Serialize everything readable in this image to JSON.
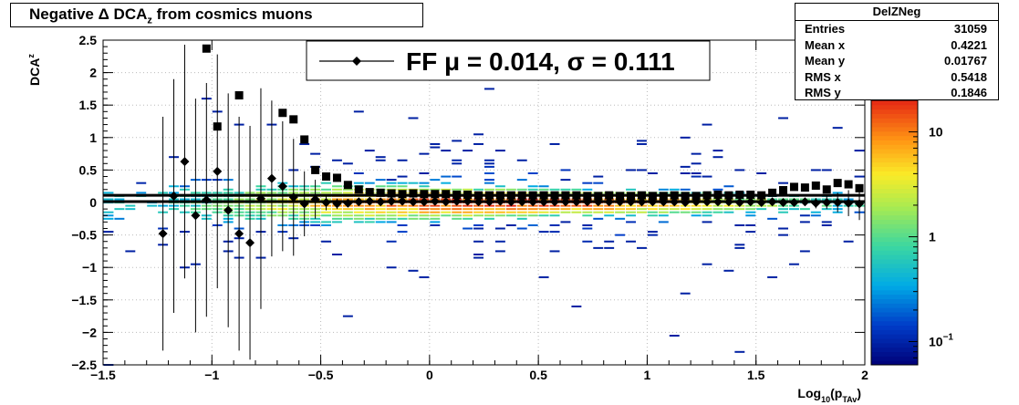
{
  "title": {
    "prefix": "Negative ",
    "delta": "Δ",
    "main": " DCA",
    "sub": "z",
    "suffix": " from cosmics muons"
  },
  "stats_box": {
    "name": "DelZNeg",
    "rows": [
      {
        "label": "Entries",
        "value": "31059"
      },
      {
        "label": "Mean x",
        "value": "0.4221"
      },
      {
        "label": "Mean y",
        "value": "0.01767"
      },
      {
        "label": "RMS x",
        "value": "0.5418"
      },
      {
        "label": "RMS y",
        "value": "0.1846"
      }
    ]
  },
  "legend": {
    "entry": "FF μ =  0.014, σ =   0.111"
  },
  "chart_data": {
    "type": "scatter",
    "xlabel": "Log",
    "xlabel_sub1": "10",
    "xlabel_mid": "(p",
    "xlabel_sub2": "TAv",
    "xlabel_end": ")",
    "ylabel": "DCA",
    "ylabel_sub": "z",
    "xlim": [
      -1.5,
      2
    ],
    "ylim": [
      -2.5,
      2.5
    ],
    "x_ticks": [
      -1.5,
      -1,
      -0.5,
      0,
      0.5,
      1,
      1.5,
      2
    ],
    "x_tick_labels": [
      "−1.5",
      "−1",
      "−0.5",
      "0",
      "0.5",
      "1",
      "1.5",
      "2"
    ],
    "y_ticks": [
      -2.5,
      -2,
      -1.5,
      -1,
      -0.5,
      0,
      0.5,
      1,
      1.5,
      2,
      2.5
    ],
    "y_tick_labels": [
      "−2.5",
      "−2",
      "−1.5",
      "−1",
      "−0.5",
      "0",
      "0.5",
      "1",
      "1.5",
      "2",
      "2.5"
    ],
    "grid": true,
    "log_color_scale": true,
    "colorbar": {
      "min": 0.06,
      "max": 20,
      "labels": [
        {
          "value": 10,
          "text": "10",
          "sup": ""
        },
        {
          "value": 1,
          "text": "1",
          "sup": ""
        },
        {
          "value": 0.1,
          "text": "10",
          "sup": "−1"
        }
      ]
    },
    "fit_line": {
      "y": 0.014,
      "y2": 0.111
    },
    "series": [
      {
        "marker": "diamond",
        "x": [
          -1.225,
          -1.175,
          -1.125,
          -1.075,
          -1.025,
          -0.975,
          -0.925,
          -0.875,
          -0.825,
          -0.775,
          -0.725,
          -0.675,
          -0.625,
          -0.575,
          -0.525,
          -0.475,
          -0.425,
          -0.375,
          -0.325,
          -0.275,
          -0.225,
          -0.175,
          -0.125,
          -0.075,
          -0.025,
          0.025,
          0.075,
          0.125,
          0.175,
          0.225,
          0.275,
          0.325,
          0.375,
          0.425,
          0.475,
          0.525,
          0.575,
          0.625,
          0.675,
          0.725,
          0.775,
          0.825,
          0.875,
          0.925,
          0.975,
          1.025,
          1.075,
          1.125,
          1.175,
          1.225,
          1.275,
          1.325,
          1.375,
          1.425,
          1.475,
          1.525,
          1.575,
          1.625,
          1.675,
          1.725,
          1.775,
          1.825,
          1.875,
          1.925,
          1.975
        ],
        "y": [
          -0.48,
          0.1,
          0.63,
          -0.2,
          0.04,
          0.48,
          -0.12,
          -0.48,
          -0.62,
          0.06,
          0.37,
          0.25,
          0.08,
          -0.02,
          0.05,
          0.0,
          -0.02,
          -0.01,
          0.01,
          0.02,
          0.01,
          0.02,
          0.02,
          0.01,
          0.01,
          0.02,
          0.01,
          0.02,
          0.02,
          0.01,
          0.01,
          0.02,
          0.01,
          0.01,
          0.01,
          0.01,
          0.01,
          0.01,
          0.01,
          0.01,
          0.01,
          0.01,
          0.01,
          0.01,
          0.01,
          0.01,
          0.01,
          0.01,
          0.0,
          0.01,
          0.01,
          0.01,
          0.01,
          0.0,
          0.01,
          0.0,
          0.01,
          0.0,
          0.0,
          0.01,
          -0.01,
          0.0,
          0.0,
          -0.01,
          -0.02
        ],
        "err": [
          1.8,
          1.8,
          1.8,
          1.8,
          1.8,
          1.8,
          1.8,
          1.8,
          1.8,
          1.7,
          1.2,
          1.0,
          0.9,
          0.5,
          0.3,
          0.12,
          0.08,
          0.06,
          0.05,
          0.04,
          0.03,
          0.03,
          0.03,
          0.03,
          0.03,
          0.03,
          0.03,
          0.03,
          0.03,
          0.03,
          0.03,
          0.03,
          0.03,
          0.03,
          0.03,
          0.03,
          0.03,
          0.03,
          0.03,
          0.03,
          0.03,
          0.03,
          0.03,
          0.03,
          0.03,
          0.03,
          0.03,
          0.03,
          0.03,
          0.03,
          0.03,
          0.03,
          0.03,
          0.03,
          0.03,
          0.04,
          0.04,
          0.04,
          0.05,
          0.06,
          0.08,
          0.1,
          0.15,
          0.2,
          0.25
        ]
      },
      {
        "marker": "square",
        "x": [
          -1.025,
          -0.975,
          -0.875,
          -0.675,
          -0.625,
          -0.575,
          -0.525,
          -0.475,
          -0.425,
          -0.375,
          -0.325,
          -0.275,
          -0.225,
          -0.175,
          -0.125,
          -0.075,
          -0.025,
          0.025,
          0.075,
          0.125,
          0.175,
          0.225,
          0.275,
          0.325,
          0.375,
          0.425,
          0.475,
          0.525,
          0.575,
          0.625,
          0.675,
          0.725,
          0.775,
          0.825,
          0.875,
          0.925,
          0.975,
          1.025,
          1.075,
          1.125,
          1.175,
          1.225,
          1.275,
          1.325,
          1.375,
          1.425,
          1.475,
          1.525,
          1.575,
          1.625,
          1.675,
          1.725,
          1.775,
          1.825,
          1.875,
          1.925,
          1.975
        ],
        "y": [
          2.37,
          1.17,
          1.65,
          1.38,
          1.28,
          0.97,
          0.5,
          0.4,
          0.38,
          0.27,
          0.2,
          0.16,
          0.15,
          0.14,
          0.13,
          0.14,
          0.13,
          0.13,
          0.13,
          0.12,
          0.12,
          0.11,
          0.11,
          0.11,
          0.11,
          0.11,
          0.11,
          0.11,
          0.11,
          0.11,
          0.11,
          0.1,
          0.1,
          0.11,
          0.1,
          0.1,
          0.11,
          0.1,
          0.1,
          0.11,
          0.1,
          0.1,
          0.11,
          0.12,
          0.11,
          0.12,
          0.12,
          0.11,
          0.15,
          0.19,
          0.24,
          0.23,
          0.26,
          0.2,
          0.3,
          0.28,
          0.22
        ]
      }
    ]
  }
}
